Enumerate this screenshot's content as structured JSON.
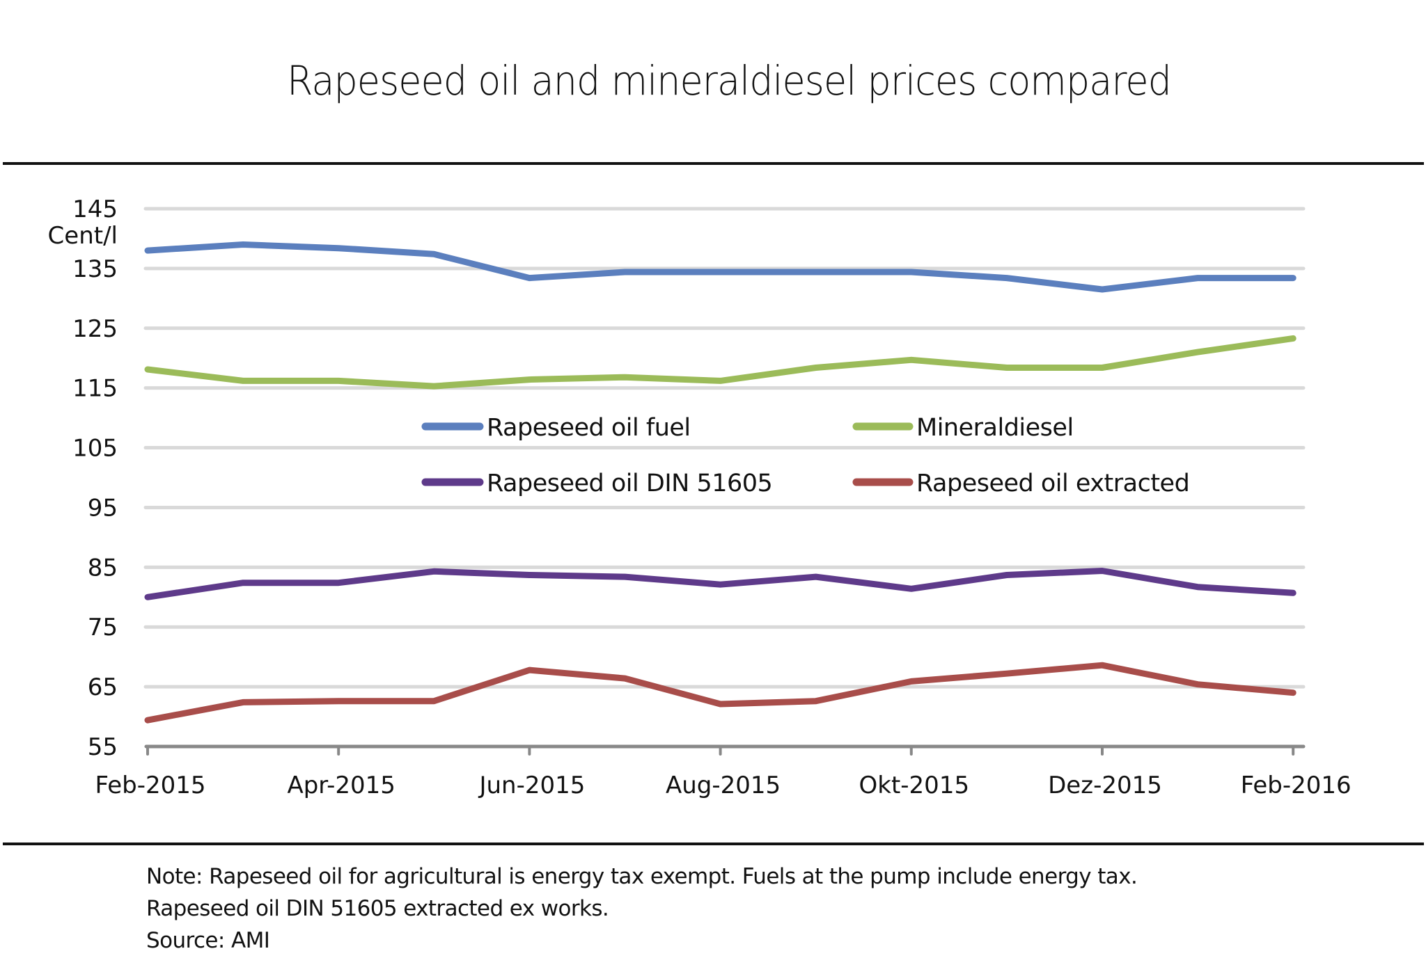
{
  "title": "Rapeseed oil and mineraldiesel prices compared",
  "footer": {
    "note_line1": "Note:  Rapeseed oil for agricultural is energy tax exempt. Fuels at the pump include energy tax.",
    "note_line2": "Rapeseed oil DIN 51605 extracted ex works.",
    "source": "Source: AMI"
  },
  "chart_data": {
    "type": "line",
    "title": "Rapeseed oil and mineraldiesel prices compared",
    "xlabel": "",
    "ylabel": "Cent/l",
    "ylim": [
      55,
      145
    ],
    "yticks": [
      55,
      65,
      75,
      85,
      95,
      105,
      115,
      125,
      135,
      145
    ],
    "grid": true,
    "legend_position": "center (inside plot, 2 columns)",
    "x": [
      "Feb-2015",
      "Mar-2015",
      "Apr-2015",
      "May-2015",
      "Jun-2015",
      "Jul-2015",
      "Aug-2015",
      "Sep-2015",
      "Okt-2015",
      "Nov-2015",
      "Dez-2015",
      "Jan-2016",
      "Feb-2016"
    ],
    "xtick_labels": [
      "Feb-2015",
      "",
      "Apr-2015",
      "",
      "Jun-2015",
      "",
      "Aug-2015",
      "",
      "Okt-2015",
      "",
      "Dez-2015",
      "",
      "Feb-2016"
    ],
    "series": [
      {
        "name": "Rapeseed oil fuel",
        "color": "#5b7fbe",
        "values": [
          138.0,
          139.0,
          138.4,
          137.4,
          133.4,
          134.4,
          134.4,
          134.4,
          134.4,
          133.4,
          131.5,
          133.4,
          133.4
        ]
      },
      {
        "name": "Mineraldiesel",
        "color": "#9bbb59",
        "values": [
          118.1,
          116.2,
          116.2,
          115.3,
          116.4,
          116.8,
          116.2,
          118.4,
          119.7,
          118.4,
          118.4,
          121.0,
          123.3
        ]
      },
      {
        "name": "Rapeseed oil DIN 51605",
        "color": "#5e3a8a",
        "values": [
          80.0,
          82.4,
          82.4,
          84.3,
          83.7,
          83.4,
          82.1,
          83.4,
          81.4,
          83.7,
          84.4,
          81.7,
          80.7
        ]
      },
      {
        "name": "Rapeseed oil extracted",
        "color": "#a84d4a",
        "values": [
          59.4,
          62.4,
          62.6,
          62.6,
          67.8,
          66.4,
          62.1,
          62.6,
          65.9,
          67.2,
          68.6,
          65.4,
          64.0
        ]
      }
    ]
  },
  "colors": {
    "gridline": "#d9d9d9",
    "axis": "#888888",
    "divider": "#111111"
  }
}
